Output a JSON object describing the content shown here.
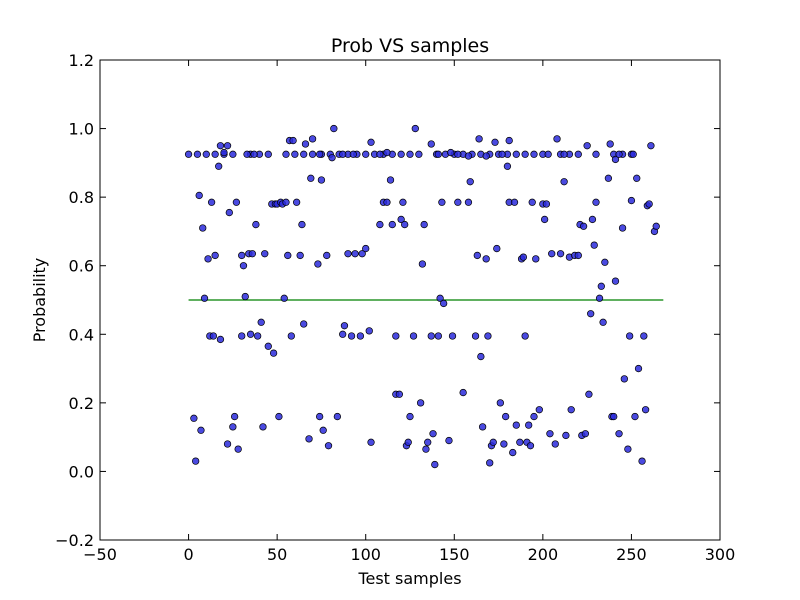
{
  "chart_data": {
    "type": "scatter",
    "title": "Prob VS samples",
    "xlabel": "Test samples",
    "ylabel": "Probability",
    "xlim": [
      -50,
      300
    ],
    "ylim": [
      -0.2,
      1.2
    ],
    "xticks": [
      -50,
      0,
      50,
      100,
      150,
      200,
      250,
      300
    ],
    "yticks": [
      -0.2,
      0.0,
      0.2,
      0.4,
      0.6,
      0.8,
      1.0,
      1.2
    ],
    "grid": false,
    "point_color": "#2a2adb",
    "point_edge_color": "#000000",
    "threshold_line": {
      "x": [
        0,
        268
      ],
      "y": [
        0.5,
        0.5
      ],
      "color": "#008000"
    },
    "series": [
      {
        "points": [
          [
            0,
            0.925
          ],
          [
            5,
            0.925
          ],
          [
            10,
            0.925
          ],
          [
            15,
            0.925
          ],
          [
            20,
            0.925
          ],
          [
            25,
            0.925
          ],
          [
            35,
            0.925
          ],
          [
            40,
            0.925
          ],
          [
            45,
            0.925
          ],
          [
            55,
            0.925
          ],
          [
            60,
            0.925
          ],
          [
            65,
            0.925
          ],
          [
            70,
            0.925
          ],
          [
            75,
            0.925
          ],
          [
            80,
            0.925
          ],
          [
            85,
            0.925
          ],
          [
            90,
            0.925
          ],
          [
            95,
            0.925
          ],
          [
            100,
            0.925
          ],
          [
            105,
            0.925
          ],
          [
            110,
            0.925
          ],
          [
            115,
            0.925
          ],
          [
            120,
            0.925
          ],
          [
            125,
            0.925
          ],
          [
            130,
            0.925
          ],
          [
            140,
            0.925
          ],
          [
            145,
            0.925
          ],
          [
            150,
            0.925
          ],
          [
            155,
            0.925
          ],
          [
            160,
            0.925
          ],
          [
            165,
            0.925
          ],
          [
            170,
            0.925
          ],
          [
            175,
            0.925
          ],
          [
            180,
            0.925
          ],
          [
            185,
            0.925
          ],
          [
            190,
            0.925
          ],
          [
            195,
            0.925
          ],
          [
            200,
            0.925
          ],
          [
            210,
            0.925
          ],
          [
            215,
            0.925
          ],
          [
            220,
            0.925
          ],
          [
            230,
            0.925
          ],
          [
            240,
            0.925
          ],
          [
            245,
            0.925
          ],
          [
            250,
            0.925
          ],
          [
            17,
            0.89
          ],
          [
            18,
            0.95
          ],
          [
            20,
            0.93
          ],
          [
            22,
            0.95
          ],
          [
            33,
            0.925
          ],
          [
            37,
            0.925
          ],
          [
            57,
            0.965
          ],
          [
            59,
            0.965
          ],
          [
            66,
            0.955
          ],
          [
            70,
            0.97
          ],
          [
            74,
            0.925
          ],
          [
            81,
            0.915
          ],
          [
            82,
            1.0
          ],
          [
            87,
            0.925
          ],
          [
            93,
            0.925
          ],
          [
            103,
            0.96
          ],
          [
            108,
            0.925
          ],
          [
            112,
            0.93
          ],
          [
            128,
            1.0
          ],
          [
            137,
            0.955
          ],
          [
            141,
            0.925
          ],
          [
            148,
            0.93
          ],
          [
            152,
            0.925
          ],
          [
            158,
            0.92
          ],
          [
            164,
            0.97
          ],
          [
            168,
            0.92
          ],
          [
            173,
            0.96
          ],
          [
            177,
            0.925
          ],
          [
            181,
            0.965
          ],
          [
            203,
            0.925
          ],
          [
            208,
            0.97
          ],
          [
            212,
            0.925
          ],
          [
            225,
            0.95
          ],
          [
            238,
            0.955
          ],
          [
            241,
            0.91
          ],
          [
            243,
            0.925
          ],
          [
            251,
            0.925
          ],
          [
            261,
            0.95
          ],
          [
            3,
            0.155
          ],
          [
            4,
            0.03
          ],
          [
            7,
            0.12
          ],
          [
            8,
            0.71
          ],
          [
            6,
            0.805
          ],
          [
            9,
            0.505
          ],
          [
            11,
            0.62
          ],
          [
            12,
            0.395
          ],
          [
            13,
            0.785
          ],
          [
            14,
            0.395
          ],
          [
            15,
            0.63
          ],
          [
            18,
            0.385
          ],
          [
            22,
            0.08
          ],
          [
            23,
            0.755
          ],
          [
            25,
            0.13
          ],
          [
            26,
            0.16
          ],
          [
            27,
            0.785
          ],
          [
            28,
            0.065
          ],
          [
            30,
            0.395
          ],
          [
            30,
            0.63
          ],
          [
            31,
            0.6
          ],
          [
            32,
            0.51
          ],
          [
            34,
            0.635
          ],
          [
            35,
            0.4
          ],
          [
            36,
            0.635
          ],
          [
            38,
            0.72
          ],
          [
            39,
            0.395
          ],
          [
            41,
            0.435
          ],
          [
            42,
            0.13
          ],
          [
            43,
            0.635
          ],
          [
            45,
            0.365
          ],
          [
            47,
            0.78
          ],
          [
            48,
            0.345
          ],
          [
            49,
            0.78
          ],
          [
            50,
            0.78
          ],
          [
            51,
            0.16
          ],
          [
            52,
            0.785
          ],
          [
            53,
            0.78
          ],
          [
            54,
            0.505
          ],
          [
            55,
            0.785
          ],
          [
            56,
            0.63
          ],
          [
            58,
            0.395
          ],
          [
            61,
            0.785
          ],
          [
            63,
            0.63
          ],
          [
            64,
            0.72
          ],
          [
            65,
            0.43
          ],
          [
            68,
            0.095
          ],
          [
            69,
            0.855
          ],
          [
            73,
            0.605
          ],
          [
            74,
            0.16
          ],
          [
            75,
            0.85
          ],
          [
            76,
            0.12
          ],
          [
            78,
            0.63
          ],
          [
            79,
            0.075
          ],
          [
            84,
            0.16
          ],
          [
            87,
            0.4
          ],
          [
            88,
            0.425
          ],
          [
            90,
            0.635
          ],
          [
            92,
            0.395
          ],
          [
            94,
            0.635
          ],
          [
            97,
            0.395
          ],
          [
            98,
            0.635
          ],
          [
            100,
            0.65
          ],
          [
            102,
            0.41
          ],
          [
            103,
            0.085
          ],
          [
            108,
            0.72
          ],
          [
            110,
            0.785
          ],
          [
            112,
            0.785
          ],
          [
            114,
            0.85
          ],
          [
            115,
            0.72
          ],
          [
            117,
            0.225
          ],
          [
            117,
            0.395
          ],
          [
            119,
            0.225
          ],
          [
            120,
            0.735
          ],
          [
            121,
            0.785
          ],
          [
            122,
            0.72
          ],
          [
            123,
            0.075
          ],
          [
            124,
            0.085
          ],
          [
            125,
            0.16
          ],
          [
            127,
            0.395
          ],
          [
            131,
            0.2
          ],
          [
            132,
            0.605
          ],
          [
            133,
            0.72
          ],
          [
            134,
            0.065
          ],
          [
            135,
            0.085
          ],
          [
            137,
            0.395
          ],
          [
            138,
            0.11
          ],
          [
            139,
            0.02
          ],
          [
            141,
            0.395
          ],
          [
            142,
            0.505
          ],
          [
            143,
            0.785
          ],
          [
            144,
            0.49
          ],
          [
            147,
            0.09
          ],
          [
            149,
            0.395
          ],
          [
            152,
            0.785
          ],
          [
            155,
            0.23
          ],
          [
            158,
            0.785
          ],
          [
            159,
            0.845
          ],
          [
            162,
            0.395
          ],
          [
            163,
            0.63
          ],
          [
            165,
            0.335
          ],
          [
            166,
            0.13
          ],
          [
            168,
            0.62
          ],
          [
            169,
            0.395
          ],
          [
            170,
            0.025
          ],
          [
            171,
            0.075
          ],
          [
            172,
            0.085
          ],
          [
            174,
            0.65
          ],
          [
            176,
            0.2
          ],
          [
            178,
            0.08
          ],
          [
            179,
            0.16
          ],
          [
            180,
            0.89
          ],
          [
            181,
            0.785
          ],
          [
            183,
            0.055
          ],
          [
            184,
            0.785
          ],
          [
            185,
            0.135
          ],
          [
            187,
            0.085
          ],
          [
            188,
            0.62
          ],
          [
            189,
            0.625
          ],
          [
            190,
            0.395
          ],
          [
            191,
            0.085
          ],
          [
            192,
            0.135
          ],
          [
            193,
            0.075
          ],
          [
            194,
            0.785
          ],
          [
            195,
            0.16
          ],
          [
            196,
            0.62
          ],
          [
            198,
            0.18
          ],
          [
            200,
            0.78
          ],
          [
            201,
            0.735
          ],
          [
            202,
            0.78
          ],
          [
            204,
            0.11
          ],
          [
            205,
            0.635
          ],
          [
            207,
            0.08
          ],
          [
            210,
            0.635
          ],
          [
            212,
            0.845
          ],
          [
            213,
            0.105
          ],
          [
            215,
            0.625
          ],
          [
            216,
            0.18
          ],
          [
            218,
            0.63
          ],
          [
            220,
            0.63
          ],
          [
            221,
            0.72
          ],
          [
            222,
            0.105
          ],
          [
            223,
            0.715
          ],
          [
            224,
            0.11
          ],
          [
            226,
            0.225
          ],
          [
            227,
            0.46
          ],
          [
            228,
            0.735
          ],
          [
            229,
            0.66
          ],
          [
            230,
            0.785
          ],
          [
            232,
            0.505
          ],
          [
            233,
            0.54
          ],
          [
            234,
            0.435
          ],
          [
            235,
            0.61
          ],
          [
            237,
            0.855
          ],
          [
            239,
            0.16
          ],
          [
            240,
            0.16
          ],
          [
            241,
            0.555
          ],
          [
            243,
            0.11
          ],
          [
            245,
            0.71
          ],
          [
            246,
            0.27
          ],
          [
            248,
            0.065
          ],
          [
            249,
            0.395
          ],
          [
            250,
            0.79
          ],
          [
            252,
            0.16
          ],
          [
            253,
            0.855
          ],
          [
            254,
            0.3
          ],
          [
            256,
            0.03
          ],
          [
            257,
            0.395
          ],
          [
            258,
            0.18
          ],
          [
            259,
            0.775
          ],
          [
            260,
            0.78
          ],
          [
            263,
            0.7
          ],
          [
            264,
            0.715
          ]
        ]
      }
    ]
  }
}
